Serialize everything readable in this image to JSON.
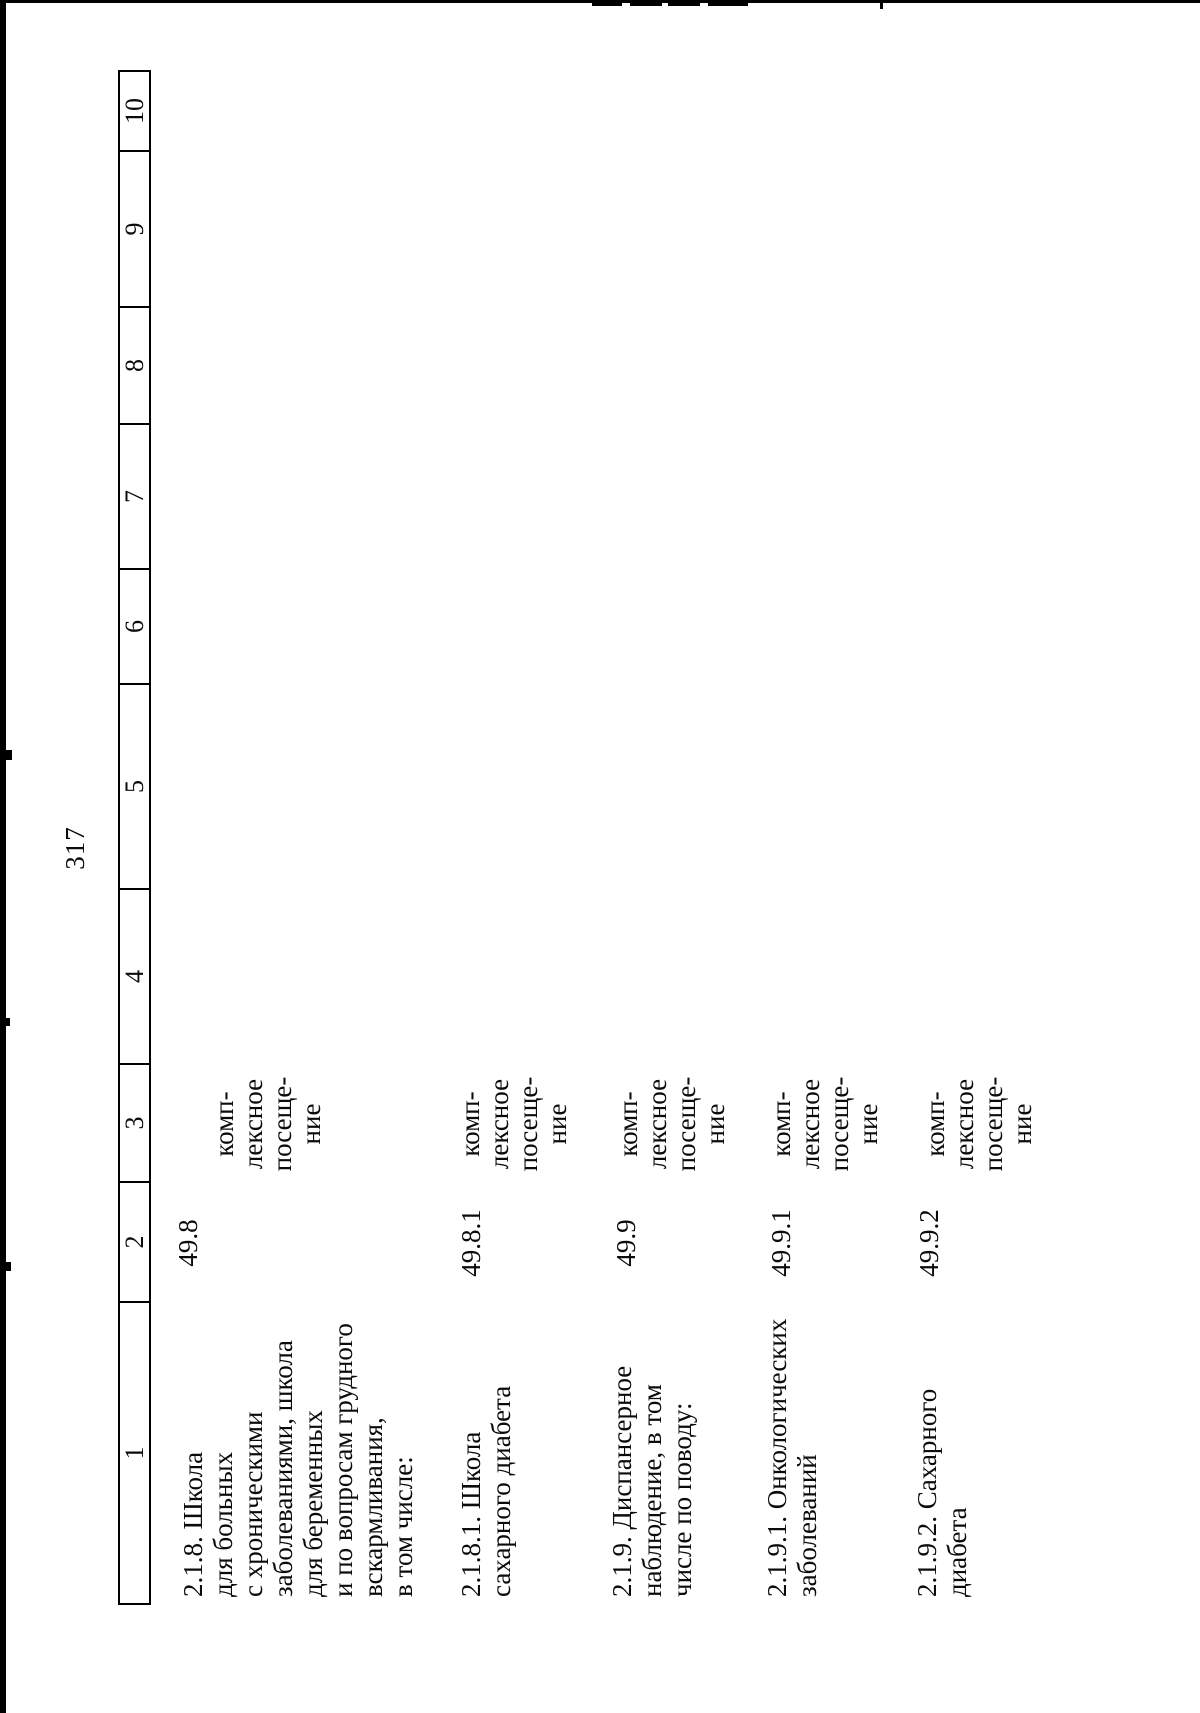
{
  "page": {
    "number": "317"
  },
  "table": {
    "header_columns": [
      "1",
      "2",
      "3",
      "4",
      "5",
      "6",
      "7",
      "8",
      "9",
      "10"
    ],
    "rows": [
      {
        "service": "2.1.8. Школа\nдля больных\nс хроническими\nзаболеваниями, школа\nдля беременных\nи по вопросам грудного\nвскармливания,\nв том числе:",
        "code": "49.8",
        "unit": "комп-\nлексное\nпосеще-\nние"
      },
      {
        "service": "2.1.8.1. Школа\nсахарного диабета",
        "code": "49.8.1",
        "unit": "комп-\nлексное\nпосеще-\nние"
      },
      {
        "service": "2.1.9. Диспансерное\nнаблюдение, в том\nчисле по поводу:",
        "code": "49.9",
        "unit": "комп-\nлексное\nпосеще-\nние"
      },
      {
        "service": "2.1.9.1. Онкологических\nзаболеваний",
        "code": "49.9.1",
        "unit": "комп-\nлексное\nпосеще-\nние"
      },
      {
        "service": "2.1.9.2. Сахарного\nдиабета",
        "code": "49.9.2",
        "unit": "комп-\nлексное\nпосеще-\nние"
      }
    ]
  },
  "colors": {
    "ink": "#0b0b0b",
    "paper": "#ffffff",
    "scan_artifact": "#000000"
  }
}
